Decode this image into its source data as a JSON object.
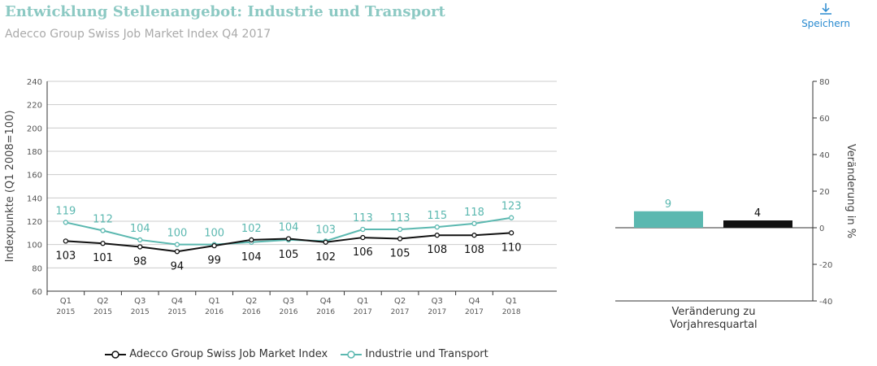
{
  "title": "Entwicklung Stellenangebot: Industrie und Transport",
  "subtitle": "Adecco Group Swiss Job Market Index Q4 2017",
  "save_label": "Speichern",
  "save_icon": "download-icon",
  "colors": {
    "teal": "#5bb8b0",
    "black": "#111111"
  },
  "chart_data": [
    {
      "type": "line",
      "ylabel": "Indexpunkte (Q1 2008=100)",
      "ylim": [
        60,
        240
      ],
      "yticks": [
        60,
        80,
        100,
        120,
        140,
        160,
        180,
        200,
        220,
        240
      ],
      "grid": true,
      "categories": [
        [
          "Q1",
          "2015"
        ],
        [
          "Q2",
          "2015"
        ],
        [
          "Q3",
          "2015"
        ],
        [
          "Q4",
          "2015"
        ],
        [
          "Q1",
          "2016"
        ],
        [
          "Q2",
          "2016"
        ],
        [
          "Q3",
          "2016"
        ],
        [
          "Q4",
          "2016"
        ],
        [
          "Q1",
          "2017"
        ],
        [
          "Q2",
          "2017"
        ],
        [
          "Q3",
          "2017"
        ],
        [
          "Q4",
          "2017"
        ],
        [
          "Q1",
          "2018"
        ]
      ],
      "series": [
        {
          "name": "Adecco Group Swiss Job Market Index",
          "color": "#111111",
          "values": [
            103,
            101,
            98,
            94,
            99,
            104,
            105,
            102,
            106,
            105,
            108,
            108,
            110
          ]
        },
        {
          "name": "Industrie und Transport",
          "color": "#5bb8b0",
          "values": [
            119,
            112,
            104,
            100,
            100,
            102,
            104,
            103,
            113,
            113,
            115,
            118,
            123
          ]
        }
      ],
      "legend": "bottom"
    },
    {
      "type": "bar",
      "ylabel": "Veränderung in %",
      "ylim": [
        -40,
        80
      ],
      "yticks": [
        -40,
        -20,
        0,
        20,
        40,
        60,
        80
      ],
      "grid": false,
      "xlabel": [
        "Veränderung zu",
        "Vorjahresquartal"
      ],
      "values": [
        {
          "value": 9,
          "color": "#5bb8b0"
        },
        {
          "value": 4,
          "color": "#111111"
        }
      ]
    }
  ]
}
